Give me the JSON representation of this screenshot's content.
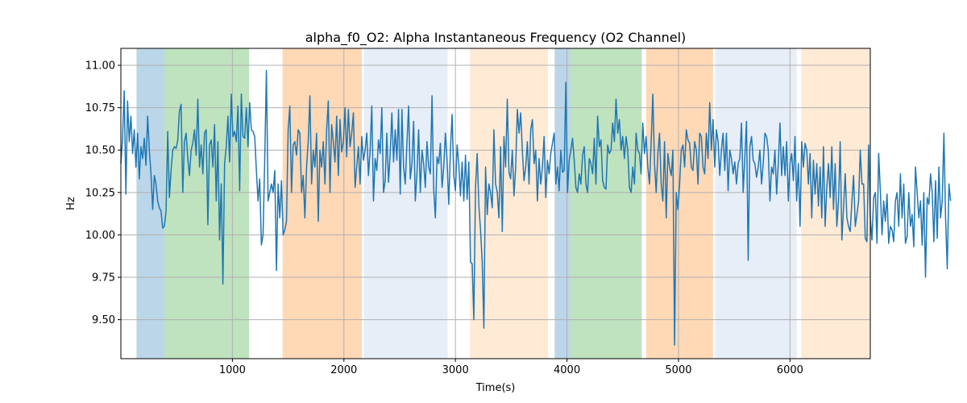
{
  "chart_data": {
    "type": "line",
    "title": "alpha_f0_O2: Alpha Instantaneous Frequency (O2 Channel)",
    "xlabel": "Time(s)",
    "ylabel": "Hz",
    "xlim": [
      0,
      6720
    ],
    "ylim": [
      9.27,
      11.1
    ],
    "grid": true,
    "x_ticks": [
      1000,
      2000,
      3000,
      4000,
      5000,
      6000
    ],
    "y_ticks": [
      9.5,
      9.75,
      10.0,
      10.25,
      10.5,
      10.75,
      11.0
    ],
    "x_tick_labels": [
      "1000",
      "2000",
      "3000",
      "4000",
      "5000",
      "6000"
    ],
    "y_tick_labels": [
      "9.50",
      "9.75",
      "10.00",
      "10.25",
      "10.50",
      "10.75",
      "11.00"
    ],
    "series": [
      {
        "name": "alpha_f0_O2",
        "color": "#1f77b4",
        "x_start": 0,
        "x_step": 15,
        "values": [
          10.42,
          10.57,
          10.85,
          10.24,
          10.79,
          10.55,
          10.7,
          10.48,
          10.62,
          10.4,
          10.6,
          10.33,
          10.52,
          10.45,
          10.57,
          10.41,
          10.7,
          10.5,
          10.36,
          10.15,
          10.35,
          10.3,
          10.2,
          10.16,
          10.14,
          10.04,
          10.05,
          10.14,
          10.61,
          10.22,
          10.38,
          10.5,
          10.52,
          10.51,
          10.56,
          10.73,
          10.77,
          10.25,
          10.55,
          10.6,
          10.45,
          10.35,
          10.5,
          10.54,
          10.62,
          10.47,
          10.8,
          10.4,
          10.53,
          10.36,
          10.6,
          10.62,
          10.06,
          10.53,
          10.56,
          10.4,
          10.65,
          10.2,
          10.55,
          9.97,
          10.3,
          9.71,
          10.42,
          10.52,
          10.7,
          10.43,
          10.83,
          10.58,
          10.61,
          10.55,
          10.76,
          10.26,
          10.83,
          10.58,
          10.57,
          10.75,
          10.52,
          10.78,
          10.62,
          10.61,
          10.58,
          10.38,
          10.2,
          10.33,
          9.94,
          10.0,
          10.45,
          10.97,
          10.2,
          10.25,
          10.3,
          10.25,
          10.38,
          9.79,
          10.3,
          10.1,
          10.32,
          10.0,
          10.03,
          10.08,
          10.62,
          10.76,
          10.25,
          10.53,
          10.55,
          10.47,
          10.62,
          10.6,
          10.25,
          10.35,
          10.1,
          10.4,
          10.55,
          10.82,
          10.3,
          10.5,
          10.4,
          10.6,
          10.08,
          10.5,
          10.4,
          10.55,
          10.3,
          10.62,
          10.79,
          10.25,
          10.65,
          10.55,
          10.43,
          10.7,
          10.35,
          10.68,
          10.49,
          10.55,
          10.75,
          10.46,
          10.74,
          10.52,
          10.6,
          10.72,
          10.28,
          10.4,
          10.52,
          10.3,
          10.58,
          10.44,
          10.5,
          10.6,
          10.35,
          10.5,
          10.76,
          10.2,
          10.45,
          10.38,
          10.56,
          10.48,
          10.75,
          10.25,
          10.32,
          10.6,
          10.31,
          10.48,
          10.72,
          10.43,
          10.62,
          10.44,
          10.74,
          10.24,
          10.74,
          10.4,
          10.3,
          10.54,
          10.76,
          10.33,
          10.42,
          10.67,
          10.2,
          10.36,
          10.62,
          10.25,
          10.5,
          10.42,
          10.28,
          10.55,
          10.4,
          10.36,
          10.82,
          10.27,
          10.1,
          10.46,
          10.42,
          10.54,
          10.28,
          10.4,
          10.6,
          10.44,
          10.18,
          10.5,
          10.71,
          10.35,
          10.26,
          10.53,
          10.42,
          10.23,
          10.43,
          10.2,
          10.47,
          10.21,
          10.43,
          9.84,
          9.83,
          9.5,
          10.28,
          10.48,
          10.17,
          10.03,
          9.84,
          9.45,
          10.4,
          10.12,
          10.3,
          10.25,
          10.16,
          10.62,
          10.3,
          10.25,
          10.1,
          10.52,
          10.02,
          10.58,
          10.4,
          10.8,
          10.37,
          10.33,
          10.5,
          10.23,
          10.4,
          10.74,
          10.6,
          10.72,
          10.5,
          10.32,
          10.4,
          10.55,
          10.3,
          10.62,
          10.68,
          10.42,
          10.5,
          10.2,
          10.45,
          10.3,
          10.4,
          10.58,
          10.22,
          10.44,
          10.36,
          10.48,
          10.54,
          10.6,
          10.3,
          10.4,
          10.26,
          10.5,
          10.37,
          10.38,
          10.9,
          10.25,
          10.44,
          10.5,
          10.57,
          10.44,
          10.28,
          10.25,
          10.36,
          10.3,
          10.47,
          10.52,
          10.3,
          10.25,
          10.45,
          10.42,
          10.36,
          10.57,
          10.3,
          10.7,
          10.52,
          10.56,
          10.32,
          10.28,
          10.27,
          10.53,
          10.48,
          10.5,
          10.66,
          10.55,
          10.8,
          10.6,
          10.68,
          10.5,
          10.58,
          10.45,
          10.58,
          10.5,
          10.28,
          10.25,
          10.4,
          10.3,
          10.6,
          10.5,
          10.48,
          10.36,
          10.66,
          10.48,
          10.58,
          10.4,
          10.3,
          10.55,
          10.83,
          10.42,
          10.25,
          10.48,
          10.6,
          10.3,
          10.2,
          10.55,
          10.1,
          10.48,
          10.4,
          10.35,
          10.5,
          9.35,
          10.25,
          10.15,
          10.3,
          10.5,
          10.53,
          10.4,
          10.62,
          10.56,
          10.54,
          10.4,
          10.38,
          10.55,
          10.5,
          10.3,
          10.6,
          10.58,
          10.4,
          10.36,
          10.6,
          10.45,
          10.78,
          10.5,
          10.68,
          10.4,
          10.62,
          10.55,
          10.35,
          10.5,
          10.6,
          10.38,
          10.6,
          10.26,
          10.5,
          10.45,
          10.36,
          10.43,
          10.3,
          10.42,
          10.45,
          10.66,
          10.25,
          10.46,
          10.67,
          9.85,
          10.52,
          10.58,
          10.44,
          10.42,
          10.34,
          10.4,
          10.5,
          10.3,
          10.42,
          10.6,
          10.58,
          10.5,
          10.2,
          10.4,
          10.36,
          10.5,
          10.24,
          10.42,
          10.66,
          10.35,
          10.52,
          10.35,
          10.55,
          10.2,
          10.42,
          10.48,
          10.32,
          10.58,
          10.2,
          10.42,
          10.05,
          10.55,
          10.4,
          10.54,
          10.5,
          10.3,
          10.48,
          10.1,
          10.44,
          10.24,
          10.42,
          10.17,
          10.4,
          10.1,
          10.52,
          10.05,
          10.28,
          10.42,
          10.22,
          10.52,
          10.15,
          10.42,
          10.05,
          10.2,
          10.55,
          9.97,
          10.16,
          10.36,
          10.1,
          10.05,
          10.02,
          10.2,
          10.35,
          10.05,
          10.12,
          10.2,
          10.5,
          10.3,
          10.3,
          9.98,
          9.96,
          10.53,
          10.1,
          9.97,
          10.22,
          10.25,
          9.95,
          10.48,
          10.26,
          10.0,
          10.2,
          10.08,
          10.24,
          9.95,
          10.05,
          10.03,
          9.96,
          10.2,
          10.25,
          10.05,
          10.36,
          10.1,
          10.3,
          9.95,
          9.99,
          10.25,
          10.05,
          10.12,
          9.93,
          10.4,
          10.25,
          10.1,
          10.2,
          9.94,
          10.25,
          9.75,
          10.22,
          10.18,
          10.36,
          10.25,
          9.96,
          10.32,
          9.98,
          10.4,
          10.1,
          10.2,
          10.6,
          10.1,
          9.8,
          10.3,
          10.2
        ]
      }
    ],
    "shaded_regions": [
      {
        "start": 140,
        "end": 390,
        "color": "#1f77b4",
        "opacity": 0.3
      },
      {
        "start": 390,
        "end": 1150,
        "color": "#2ca02c",
        "opacity": 0.3
      },
      {
        "start": 1450,
        "end": 2160,
        "color": "#ff7f0e",
        "opacity": 0.3
      },
      {
        "start": 2180,
        "end": 2930,
        "color": "#aec7e8",
        "opacity": 0.3
      },
      {
        "start": 3130,
        "end": 3830,
        "color": "#ffbb78",
        "opacity": 0.3
      },
      {
        "start": 3890,
        "end": 4030,
        "color": "#1f77b4",
        "opacity": 0.3
      },
      {
        "start": 4030,
        "end": 4670,
        "color": "#2ca02c",
        "opacity": 0.3
      },
      {
        "start": 4710,
        "end": 5310,
        "color": "#ff7f0e",
        "opacity": 0.3
      },
      {
        "start": 5330,
        "end": 6060,
        "color": "#aec7e8",
        "opacity": 0.3
      },
      {
        "start": 6100,
        "end": 6720,
        "color": "#ffbb78",
        "opacity": 0.3
      }
    ]
  }
}
